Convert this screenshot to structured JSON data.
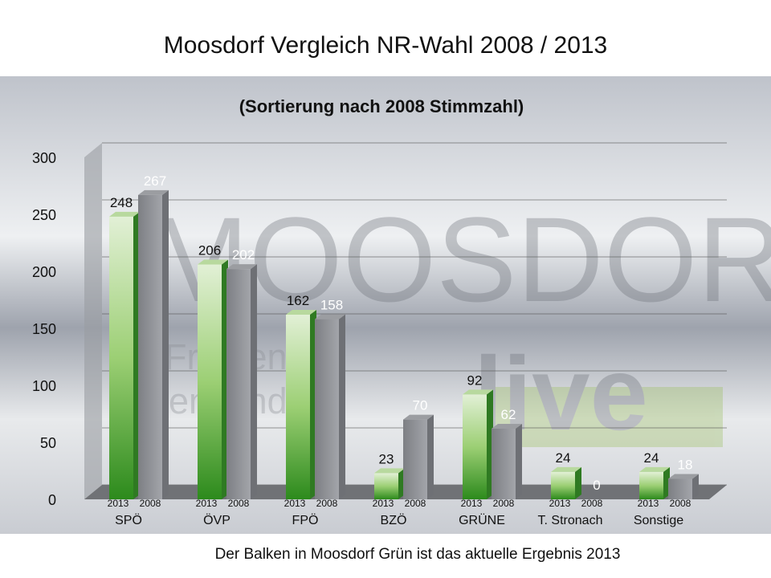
{
  "title": "Moosdorf  Vergleich NR-Wahl 2008 / 2013",
  "footnote": "Der Balken in Moosdorf Grün ist das aktuelle Ergebnis 2013",
  "watermark": {
    "text1": "MOOSDORF",
    "text2": "Friedens-",
    "text3": "gemeinde",
    "text4": "live"
  },
  "chart_data": {
    "type": "bar",
    "title": "(Sortierung nach 2008 Stimmzahl)",
    "categories": [
      "SPÖ",
      "ÖVP",
      "FPÖ",
      "BZÖ",
      "GRÜNE",
      "T. Stronach",
      "Sonstige"
    ],
    "sub_labels": [
      "2013",
      "2008"
    ],
    "series": [
      {
        "name": "2013",
        "values": [
          248,
          206,
          162,
          23,
          92,
          24,
          24
        ],
        "color": "#4fa838"
      },
      {
        "name": "2008",
        "values": [
          267,
          202,
          158,
          70,
          62,
          0,
          18
        ],
        "color": "#8a8a8a"
      }
    ],
    "ylim": [
      0,
      300
    ],
    "yticks": [
      0,
      50,
      100,
      150,
      200,
      250,
      300
    ],
    "grid": true,
    "legend": "none",
    "style": "3d"
  }
}
